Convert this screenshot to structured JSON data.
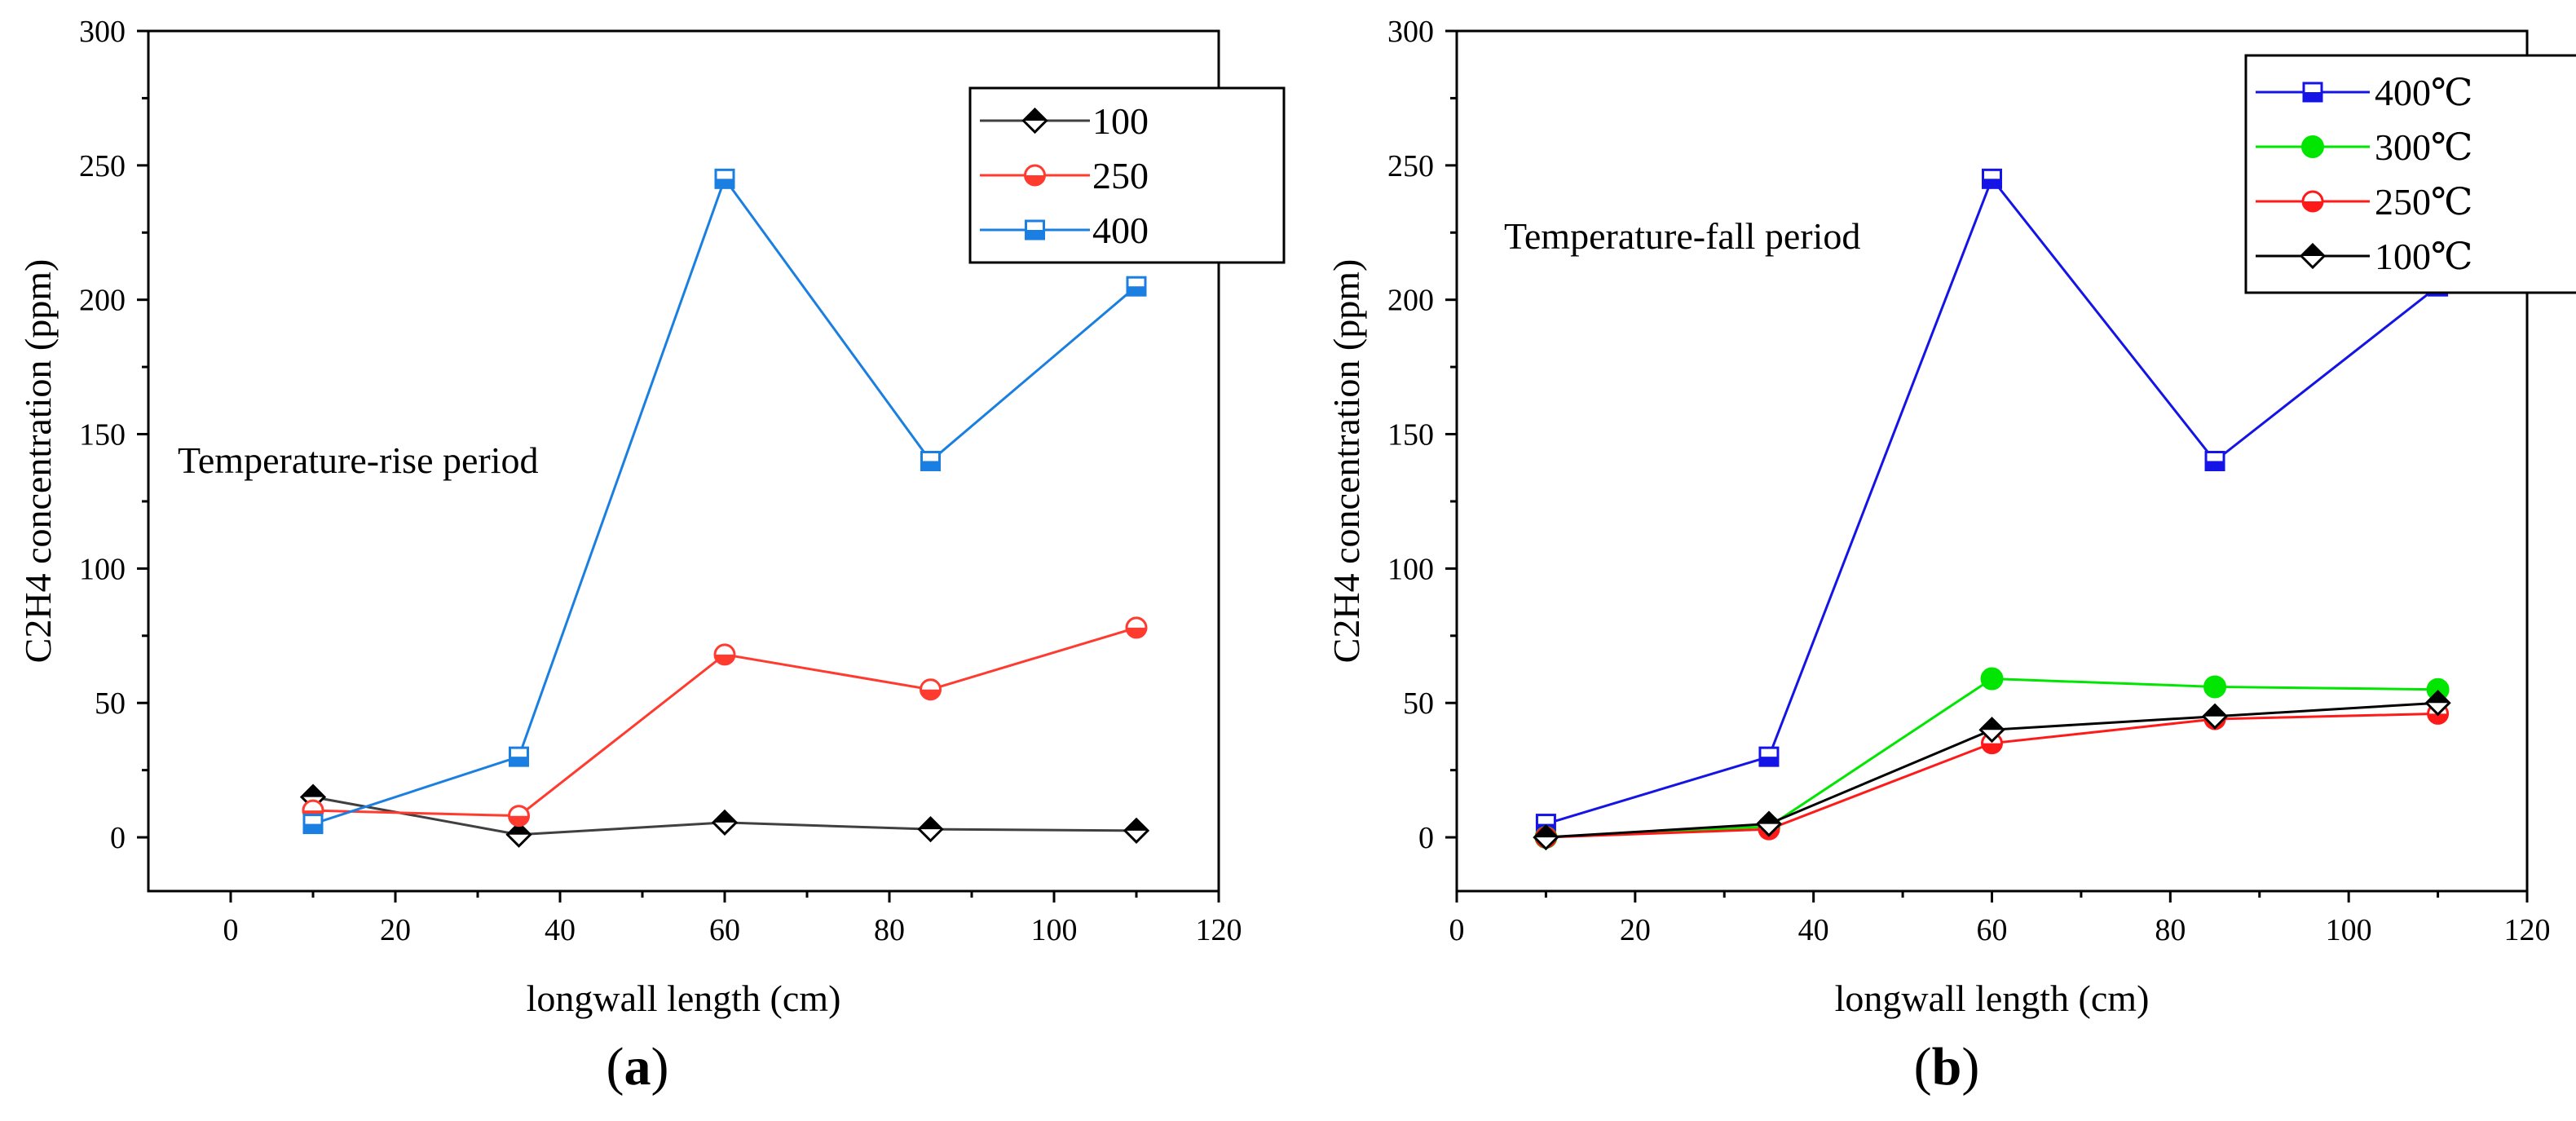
{
  "chart_data": [
    {
      "type": "line",
      "panel_label": "(a)",
      "panel_letter": "a",
      "xlabel": "longwall length (cm)",
      "ylabel": "C2H4 concentration (ppm)",
      "xlim": [
        -10,
        120
      ],
      "ylim": [
        -20,
        300
      ],
      "xticks": [
        0,
        20,
        40,
        60,
        80,
        100,
        120
      ],
      "yticks": [
        0,
        50,
        100,
        150,
        200,
        250,
        300
      ],
      "annotation": "Temperature-rise period",
      "legend_position": "top-right",
      "x": [
        10,
        35,
        60,
        85,
        110
      ],
      "series": [
        {
          "name": "100",
          "color": "#404040",
          "marker": "diamond-half",
          "values": [
            15,
            1,
            5.5,
            3,
            2.5
          ]
        },
        {
          "name": "250",
          "color": "#ff3b30",
          "marker": "circle-half",
          "values": [
            10,
            8,
            68,
            55,
            78
          ]
        },
        {
          "name": "400",
          "color": "#1a7fe0",
          "marker": "square-half",
          "values": [
            5,
            30,
            245,
            140,
            205
          ]
        }
      ]
    },
    {
      "type": "line",
      "panel_label": "(b)",
      "panel_letter": "b",
      "xlabel": "longwall length (cm)",
      "ylabel": "C2H4 concentration (ppm)",
      "xlim": [
        0,
        120
      ],
      "ylim": [
        -20,
        300
      ],
      "xticks": [
        0,
        20,
        40,
        60,
        80,
        100,
        120
      ],
      "yticks": [
        0,
        50,
        100,
        150,
        200,
        250,
        300
      ],
      "annotation": "Temperature-fall period",
      "legend_position": "top-right",
      "x": [
        10,
        35,
        60,
        85,
        110
      ],
      "series": [
        {
          "name": "400℃",
          "color": "#1414e6",
          "marker": "square-half",
          "values": [
            5,
            30,
            245,
            140,
            205
          ]
        },
        {
          "name": "300℃",
          "color": "#00e600",
          "marker": "circle",
          "values": [
            0,
            4,
            59,
            56,
            55
          ]
        },
        {
          "name": "250℃",
          "color": "#ff1a1a",
          "marker": "circle-half",
          "values": [
            0,
            3,
            35,
            44,
            46
          ]
        },
        {
          "name": "100℃",
          "color": "#000000",
          "marker": "diamond-half",
          "values": [
            0,
            5,
            40,
            45,
            50
          ]
        }
      ]
    }
  ]
}
